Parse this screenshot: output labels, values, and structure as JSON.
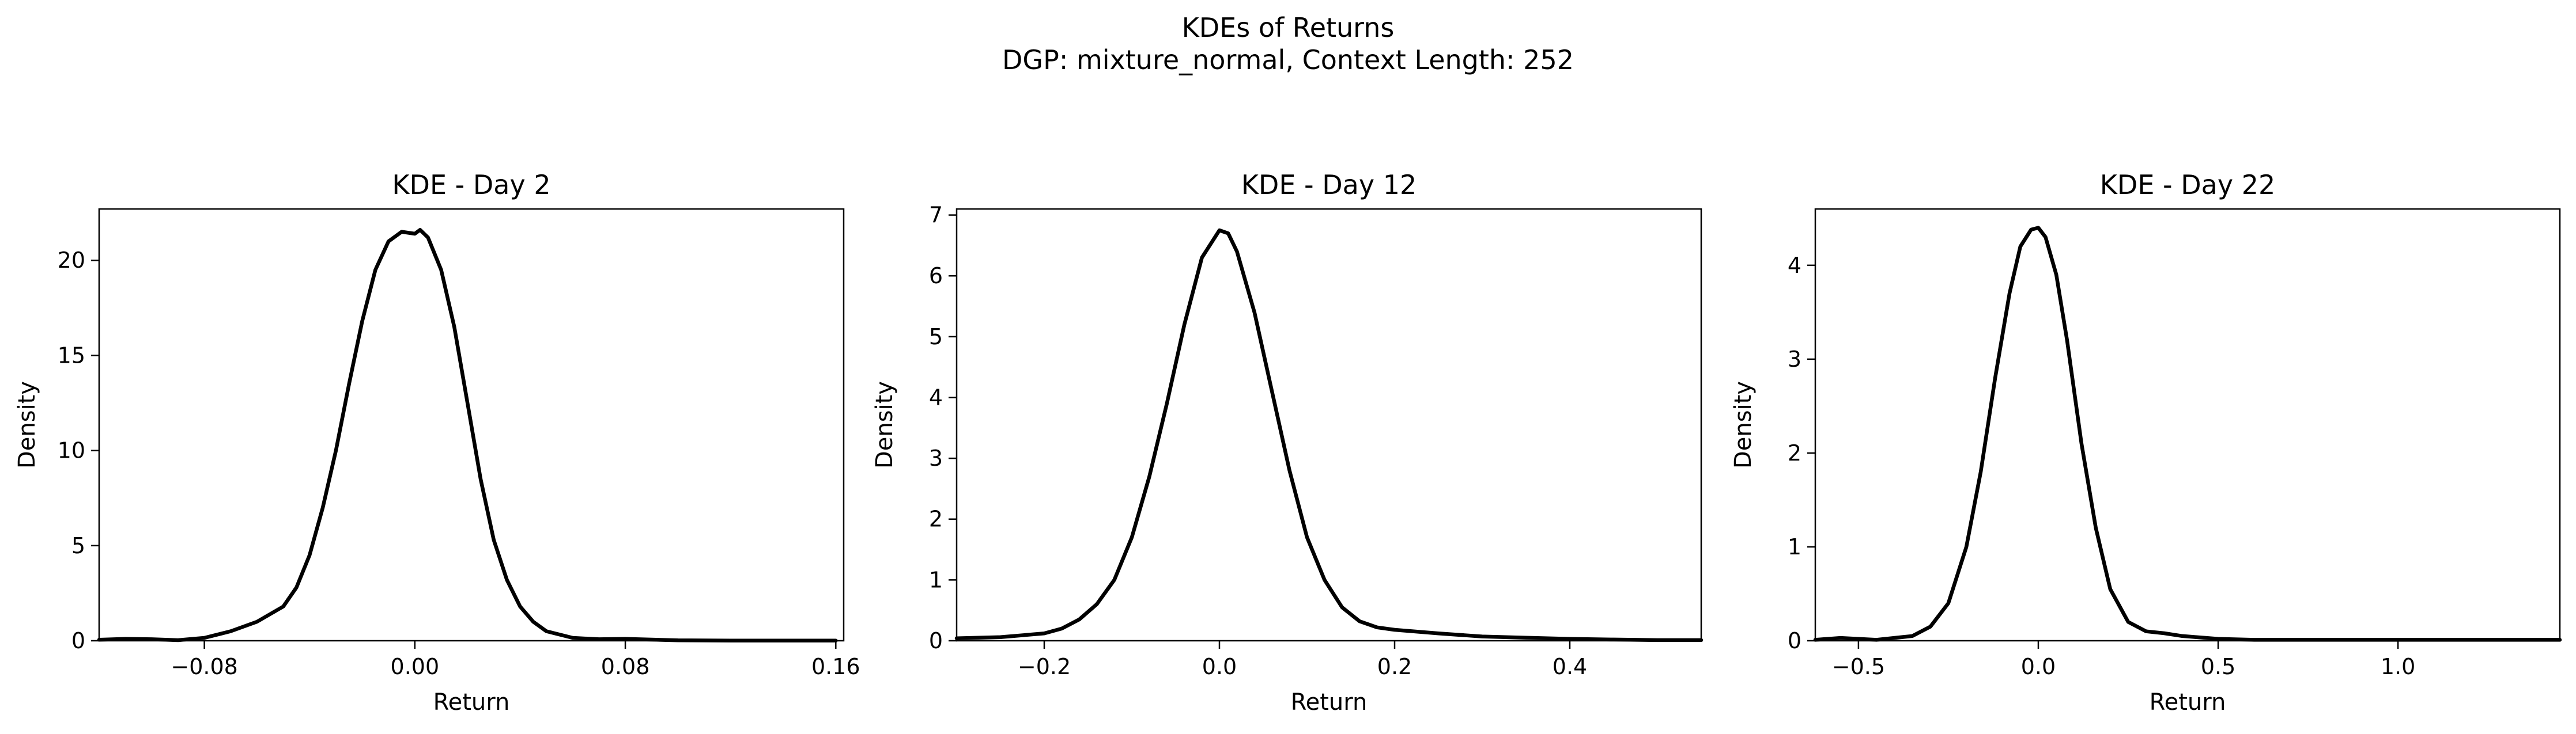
{
  "figure": {
    "title_line1": "KDEs of Returns",
    "title_line2": "DGP: mixture_normal, Context Length: 252"
  },
  "chart_data": [
    {
      "type": "line",
      "title": "KDE - Day 2",
      "xlabel": "Return",
      "ylabel": "Density",
      "xlim": [
        -0.12,
        0.163
      ],
      "ylim": [
        0,
        22.7
      ],
      "xticks": [
        -0.08,
        0.0,
        0.08,
        0.16
      ],
      "xtick_labels": [
        "−0.08",
        "0.00",
        "0.08",
        "0.16"
      ],
      "yticks": [
        0,
        5,
        10,
        15,
        20
      ],
      "ytick_labels": [
        "0",
        "5",
        "10",
        "15",
        "20"
      ],
      "grid": false,
      "line_color": "#000000",
      "series": [
        {
          "x": [
            -0.12,
            -0.11,
            -0.1,
            -0.09,
            -0.08,
            -0.07,
            -0.06,
            -0.05,
            -0.045,
            -0.04,
            -0.035,
            -0.03,
            -0.025,
            -0.02,
            -0.015,
            -0.01,
            -0.005,
            0.0,
            0.002,
            0.005,
            0.01,
            0.015,
            0.02,
            0.025,
            0.03,
            0.035,
            0.04,
            0.045,
            0.05,
            0.06,
            0.07,
            0.08,
            0.09,
            0.1,
            0.12,
            0.14,
            0.16
          ],
          "y": [
            0.05,
            0.1,
            0.08,
            0.03,
            0.15,
            0.5,
            1.0,
            1.8,
            2.8,
            4.5,
            7.0,
            10.0,
            13.5,
            16.8,
            19.5,
            21.0,
            21.5,
            21.4,
            21.6,
            21.2,
            19.5,
            16.5,
            12.5,
            8.5,
            5.3,
            3.2,
            1.8,
            1.0,
            0.5,
            0.15,
            0.08,
            0.1,
            0.06,
            0.02,
            0.01,
            0.01,
            0.01
          ]
        }
      ]
    },
    {
      "type": "line",
      "title": "KDE - Day 12",
      "xlabel": "Return",
      "ylabel": "Density",
      "xlim": [
        -0.3,
        0.55
      ],
      "ylim": [
        0,
        7.1
      ],
      "xticks": [
        -0.2,
        0.0,
        0.2,
        0.4
      ],
      "xtick_labels": [
        "−0.2",
        "0.0",
        "0.2",
        "0.4"
      ],
      "yticks": [
        0,
        1,
        2,
        3,
        4,
        5,
        6,
        7
      ],
      "ytick_labels": [
        "0",
        "1",
        "2",
        "3",
        "4",
        "5",
        "6",
        "7"
      ],
      "grid": false,
      "line_color": "#000000",
      "series": [
        {
          "x": [
            -0.3,
            -0.25,
            -0.2,
            -0.18,
            -0.16,
            -0.14,
            -0.12,
            -0.1,
            -0.08,
            -0.06,
            -0.04,
            -0.02,
            0.0,
            0.01,
            0.02,
            0.04,
            0.06,
            0.08,
            0.1,
            0.12,
            0.14,
            0.16,
            0.18,
            0.2,
            0.25,
            0.3,
            0.35,
            0.4,
            0.45,
            0.5,
            0.55
          ],
          "y": [
            0.04,
            0.06,
            0.12,
            0.2,
            0.35,
            0.6,
            1.0,
            1.7,
            2.7,
            3.9,
            5.2,
            6.3,
            6.75,
            6.7,
            6.4,
            5.4,
            4.1,
            2.8,
            1.7,
            1.0,
            0.55,
            0.32,
            0.22,
            0.18,
            0.12,
            0.07,
            0.05,
            0.03,
            0.02,
            0.01,
            0.01
          ]
        }
      ]
    },
    {
      "type": "line",
      "title": "KDE - Day 22",
      "xlabel": "Return",
      "ylabel": "Density",
      "xlim": [
        -0.62,
        1.45
      ],
      "ylim": [
        0,
        4.6
      ],
      "xticks": [
        -0.5,
        0.0,
        0.5,
        1.0
      ],
      "xtick_labels": [
        "−0.5",
        "0.0",
        "0.5",
        "1.0"
      ],
      "yticks": [
        0,
        1,
        2,
        3,
        4
      ],
      "ytick_labels": [
        "0",
        "1",
        "2",
        "3",
        "4"
      ],
      "grid": false,
      "line_color": "#000000",
      "series": [
        {
          "x": [
            -0.62,
            -0.55,
            -0.45,
            -0.35,
            -0.3,
            -0.25,
            -0.2,
            -0.16,
            -0.12,
            -0.08,
            -0.05,
            -0.02,
            0.0,
            0.02,
            0.05,
            0.08,
            0.12,
            0.16,
            0.2,
            0.25,
            0.3,
            0.35,
            0.4,
            0.5,
            0.6,
            0.8,
            1.0,
            1.2,
            1.45
          ],
          "y": [
            0.01,
            0.03,
            0.01,
            0.05,
            0.15,
            0.4,
            1.0,
            1.8,
            2.8,
            3.7,
            4.2,
            4.38,
            4.4,
            4.3,
            3.9,
            3.2,
            2.1,
            1.2,
            0.55,
            0.2,
            0.1,
            0.08,
            0.05,
            0.02,
            0.01,
            0.01,
            0.01,
            0.01,
            0.01
          ]
        }
      ]
    }
  ]
}
